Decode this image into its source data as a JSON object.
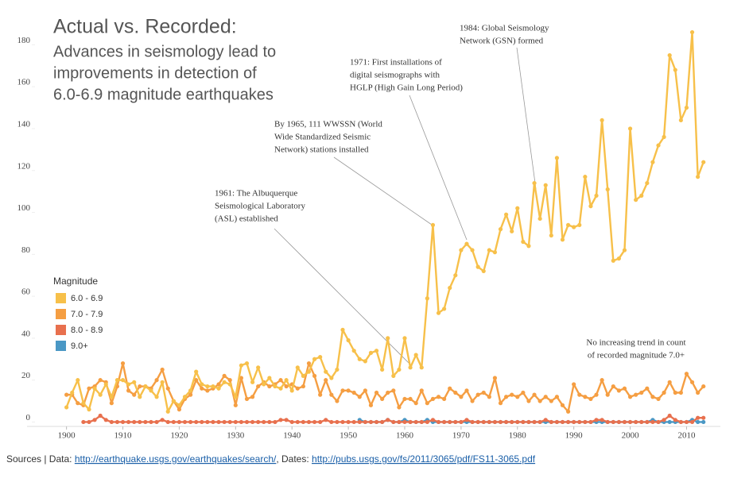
{
  "chart_data": {
    "type": "line",
    "title": "Actual vs. Recorded:",
    "subtitle": [
      "Advances in seismology lead to",
      "improvements in detection of",
      "6.0-6.9 magnitude earthquakes"
    ],
    "legend_title": "Magnitude",
    "x": [
      1900,
      1901,
      1902,
      1903,
      1904,
      1905,
      1906,
      1907,
      1908,
      1909,
      1910,
      1911,
      1912,
      1913,
      1914,
      1915,
      1916,
      1917,
      1918,
      1919,
      1920,
      1921,
      1922,
      1923,
      1924,
      1925,
      1926,
      1927,
      1928,
      1929,
      1930,
      1931,
      1932,
      1933,
      1934,
      1935,
      1936,
      1937,
      1938,
      1939,
      1940,
      1941,
      1942,
      1943,
      1944,
      1945,
      1946,
      1947,
      1948,
      1949,
      1950,
      1951,
      1952,
      1953,
      1954,
      1955,
      1956,
      1957,
      1958,
      1959,
      1960,
      1961,
      1962,
      1963,
      1964,
      1965,
      1966,
      1967,
      1968,
      1969,
      1970,
      1971,
      1972,
      1973,
      1974,
      1975,
      1976,
      1977,
      1978,
      1979,
      1980,
      1981,
      1982,
      1983,
      1984,
      1985,
      1986,
      1987,
      1988,
      1989,
      1990,
      1991,
      1992,
      1993,
      1994,
      1995,
      1996,
      1997,
      1998,
      1999,
      2000,
      2001,
      2002,
      2003,
      2004,
      2005,
      2006,
      2007,
      2008,
      2009,
      2010,
      2011,
      2012,
      2013
    ],
    "series": [
      {
        "name": "6.0 - 6.9",
        "color": "#f7c04a",
        "values": [
          7,
          14,
          20,
          9,
          6,
          16,
          13,
          18,
          12,
          20,
          20,
          18,
          19,
          12,
          17,
          15,
          12,
          19,
          5,
          10,
          8,
          12,
          15,
          24,
          18,
          17,
          17,
          16,
          19,
          18,
          12,
          27,
          28,
          19,
          26,
          18,
          21,
          17,
          16,
          20,
          15,
          26,
          22,
          24,
          30,
          31,
          24,
          21,
          25,
          44,
          39,
          34,
          30,
          29,
          33,
          34,
          25,
          40,
          22,
          25,
          40,
          26,
          32,
          26,
          59,
          94,
          52,
          54,
          64,
          70,
          82,
          85,
          82,
          74,
          72,
          82,
          81,
          92,
          99,
          91,
          102,
          86,
          84,
          114,
          97,
          113,
          89,
          126,
          87,
          94,
          93,
          94,
          117,
          103,
          108,
          144,
          111,
          77,
          78,
          82,
          140,
          106,
          108,
          114,
          124,
          132,
          136,
          175,
          168,
          144,
          150,
          186,
          117,
          124
        ]
      },
      {
        "name": "7.0 - 7.9",
        "color": "#f59e42",
        "values": [
          13,
          13,
          9,
          8,
          16,
          17,
          20,
          19,
          9,
          17,
          28,
          15,
          13,
          17,
          17,
          16,
          20,
          25,
          16,
          10,
          6,
          11,
          13,
          20,
          16,
          15,
          16,
          18,
          22,
          20,
          8,
          21,
          11,
          12,
          17,
          19,
          17,
          18,
          20,
          17,
          18,
          16,
          17,
          28,
          22,
          13,
          20,
          13,
          10,
          15,
          15,
          14,
          12,
          15,
          8,
          14,
          11,
          14,
          15,
          7,
          11,
          11,
          9,
          15,
          9,
          11,
          12,
          11,
          16,
          14,
          12,
          15,
          10,
          13,
          14,
          12,
          21,
          9,
          12,
          13,
          12,
          14,
          10,
          13,
          10,
          12,
          10,
          12,
          8,
          5,
          18,
          13,
          12,
          11,
          13,
          20,
          13,
          17,
          15,
          16,
          12,
          13,
          14,
          16,
          12,
          11,
          14,
          19,
          14,
          14,
          23,
          19,
          14,
          17
        ]
      },
      {
        "name": "8.0 - 8.9",
        "color": "#e8704e",
        "values": [
          null,
          null,
          null,
          0,
          0,
          1,
          3,
          1,
          0,
          0,
          0,
          0,
          0,
          0,
          0,
          0,
          0,
          1,
          0,
          0,
          0,
          0,
          0,
          0,
          0,
          0,
          0,
          0,
          0,
          0,
          0,
          0,
          0,
          0,
          0,
          0,
          0,
          0,
          1,
          1,
          0,
          0,
          0,
          0,
          0,
          0,
          1,
          0,
          0,
          0,
          0,
          0,
          0,
          0,
          0,
          0,
          0,
          1,
          0,
          0,
          0,
          0,
          0,
          0,
          0,
          1,
          0,
          0,
          0,
          0,
          0,
          1,
          0,
          0,
          0,
          0,
          0,
          0,
          0,
          0,
          0,
          0,
          0,
          0,
          0,
          1,
          0,
          0,
          0,
          0,
          0,
          0,
          0,
          0,
          1,
          1,
          0,
          0,
          0,
          0,
          0,
          0,
          0,
          0,
          0,
          0,
          1,
          3,
          1,
          0,
          0,
          0,
          2,
          2
        ]
      },
      {
        "name": "9.0+",
        "color": "#4a98c5",
        "values": [
          null,
          null,
          null,
          null,
          null,
          null,
          null,
          null,
          null,
          null,
          null,
          null,
          null,
          null,
          null,
          null,
          null,
          null,
          null,
          null,
          null,
          null,
          null,
          null,
          null,
          null,
          null,
          null,
          null,
          null,
          null,
          null,
          null,
          null,
          null,
          null,
          null,
          null,
          null,
          null,
          null,
          null,
          null,
          null,
          null,
          null,
          null,
          null,
          null,
          null,
          null,
          null,
          1,
          0,
          0,
          0,
          0,
          1,
          0,
          0,
          1,
          0,
          0,
          0,
          1,
          0,
          0,
          0,
          0,
          0,
          0,
          0,
          0,
          0,
          0,
          0,
          0,
          0,
          0,
          0,
          0,
          0,
          0,
          0,
          0,
          0,
          0,
          0,
          0,
          0,
          0,
          0,
          0,
          0,
          0,
          0,
          0,
          0,
          0,
          0,
          0,
          0,
          0,
          0,
          1,
          0,
          0,
          0,
          0,
          0,
          0,
          1,
          0,
          0
        ]
      }
    ],
    "xlim": [
      1893,
      2016
    ],
    "xticks": [
      1900,
      1910,
      1920,
      1930,
      1940,
      1950,
      1960,
      1970,
      1980,
      1990,
      2000,
      2010
    ],
    "ylim": [
      -4,
      190
    ],
    "yticks": [
      0,
      20,
      40,
      60,
      80,
      100,
      120,
      140,
      160,
      180
    ],
    "annotations": [
      {
        "lines": [
          "1961: The Albuquerque",
          "Seismological Laboratory",
          "(ASL) established"
        ]
      },
      {
        "lines": [
          "By 1965, 111 WWSSN (World",
          "Wide Standardized Seismic",
          "Network) stations installed"
        ]
      },
      {
        "lines": [
          "1971: First installations of",
          "digital seismographs with",
          "HGLP (High Gain Long Period)"
        ]
      },
      {
        "lines": [
          "1984: Global Seismology",
          "Network (GSN) formed"
        ]
      },
      {
        "lines": [
          "No increasing trend in count",
          "of recorded magnitude 7.0+"
        ]
      }
    ],
    "footer": {
      "prefix": "Sources | Data: ",
      "data_link": "http://earthquake.usgs.gov/earthquakes/search/",
      "middle": ", Dates: ",
      "dates_link": "http://pubs.usgs.gov/fs/2011/3065/pdf/FS11-3065.pdf"
    }
  }
}
